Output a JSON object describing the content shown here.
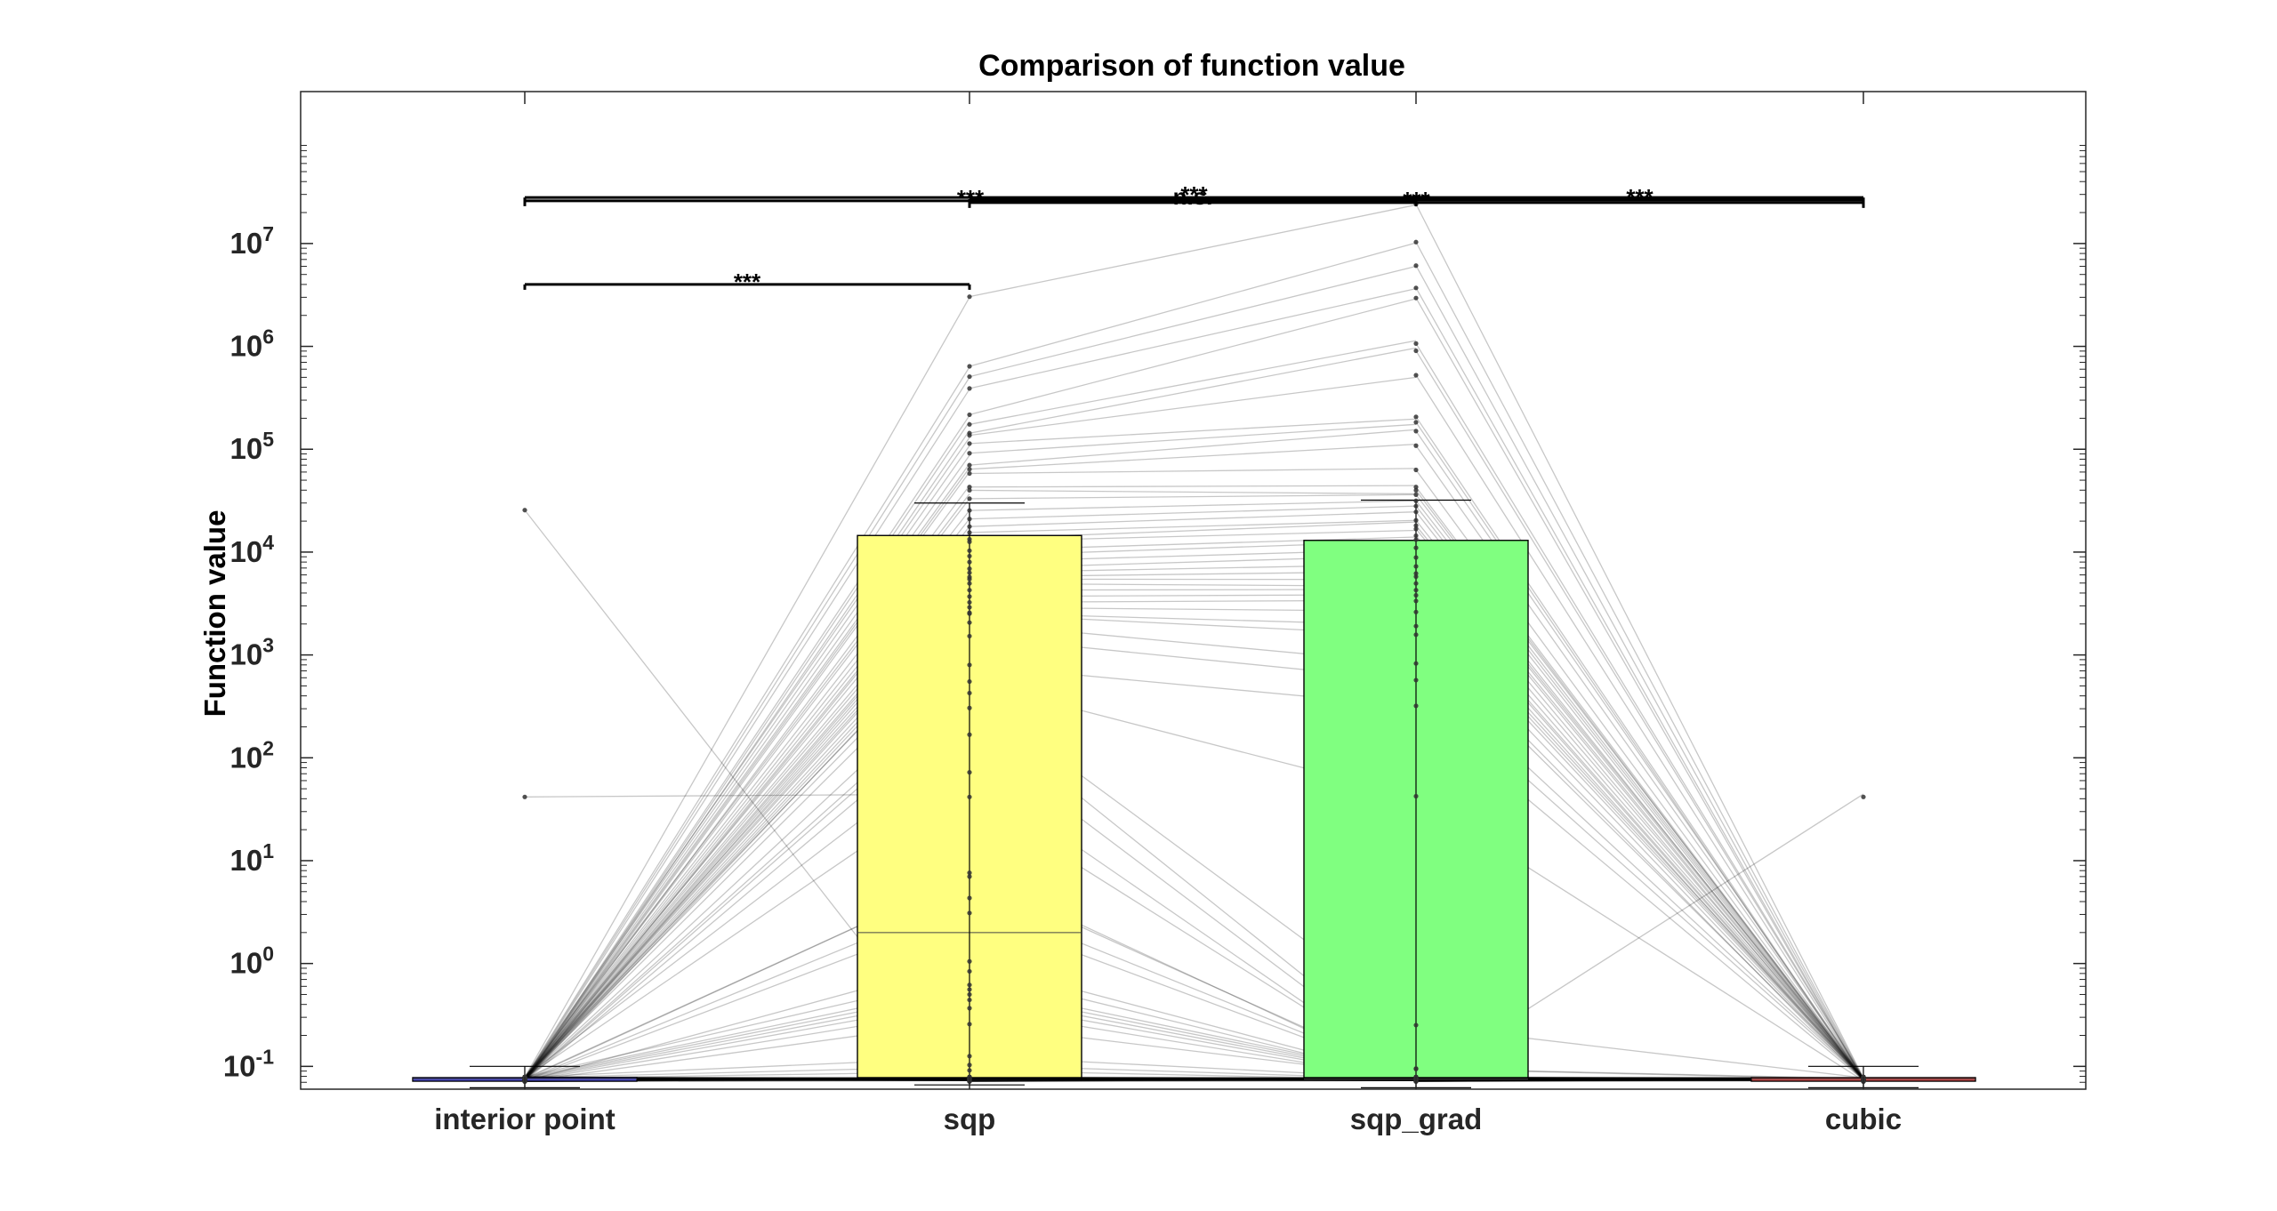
{
  "chart_data": {
    "type": "bar",
    "title": "Comparison of function value",
    "xlabel": "",
    "ylabel": "Function value",
    "yscale": "log",
    "ylim": [
      0.06,
      300000000
    ],
    "yticks": [
      {
        "value": 0.1,
        "base": "10",
        "exp": "-1"
      },
      {
        "value": 1,
        "base": "10",
        "exp": "0"
      },
      {
        "value": 10,
        "base": "10",
        "exp": "1"
      },
      {
        "value": 100,
        "base": "10",
        "exp": "2"
      },
      {
        "value": 1000,
        "base": "10",
        "exp": "3"
      },
      {
        "value": 10000,
        "base": "10",
        "exp": "4"
      },
      {
        "value": 100000,
        "base": "10",
        "exp": "5"
      },
      {
        "value": 1000000,
        "base": "10",
        "exp": "6"
      },
      {
        "value": 10000000,
        "base": "10",
        "exp": "7"
      }
    ],
    "categories": [
      "interior point",
      "sqp",
      "sqp_grad",
      "cubic"
    ],
    "bar_colors": [
      "#4d4dff",
      "#ffff80",
      "#80ff80",
      "#ff4d4d"
    ],
    "values": [
      0.075,
      14500,
      13000,
      0.075
    ],
    "error_upper": [
      0.1,
      30000,
      32000,
      0.1
    ],
    "error_lower": [
      0.062,
      0.066,
      0.062,
      0.062
    ],
    "medians": [
      0.075,
      2.0,
      0.075,
      0.075
    ],
    "points": {
      "interior point": [
        0.075,
        0.075,
        0.075,
        0.075,
        0.075,
        0.075,
        0.075,
        0.075,
        0.075,
        0.075,
        0.075,
        0.075,
        0.075,
        0.075,
        0.075,
        0.075,
        0.075,
        0.075,
        0.075,
        0.075,
        0.075,
        0.075,
        0.075,
        0.075,
        0.075,
        0.075,
        0.075,
        0.075,
        0.075,
        0.075,
        0.075,
        0.075,
        0.075,
        0.075,
        0.075,
        0.075,
        0.075,
        0.075,
        0.075,
        0.075,
        0.075,
        0.075,
        0.075,
        0.075,
        0.075,
        0.075,
        0.075,
        0.075,
        0.075,
        0.075,
        0.075,
        0.075,
        0.075,
        0.075,
        0.075,
        0.075,
        0.075,
        0.075,
        0.075,
        0.075,
        0.075,
        0.075,
        0.075,
        0.075,
        0.075,
        0.075,
        0.075,
        0.075,
        0.075,
        0.075,
        0.075,
        0.075,
        0.075,
        0.075,
        0.075,
        0.075,
        0.075,
        0.075,
        0.075,
        0.075,
        0.075,
        0.075,
        0.075,
        0.075,
        0.075,
        0.075,
        0.075,
        0.075,
        0.075,
        0.075,
        0.075,
        0.075,
        0.075,
        0.075,
        0.075,
        0.075,
        0.075,
        0.075,
        0.075,
        0.075,
        0.075,
        0.075,
        0.075,
        0.075,
        0.075,
        0.075,
        0.075,
        0.075,
        0.075,
        26000,
        43
      ],
      "sqp": [
        2900000,
        620000,
        500000,
        390000,
        220000,
        180000,
        150000,
        130000,
        110000,
        90000,
        70000,
        65000,
        60000,
        45000,
        38000,
        32000,
        25000,
        21000,
        18000,
        16000,
        14000,
        12000,
        10000,
        9000,
        8000,
        7000,
        6500,
        6000,
        5200,
        4800,
        4200,
        3700,
        3300,
        3000,
        2700,
        2400,
        2000,
        1500,
        800,
        560,
        440,
        320,
        160,
        70,
        7.5,
        7,
        4.4,
        3.2,
        1.1,
        0.8,
        0.6,
        0.55,
        0.5,
        0.45,
        0.38,
        0.27,
        0.12,
        0.1,
        0.09,
        0.075,
        0.075,
        0.075,
        0.075,
        0.075,
        0.075,
        0.075,
        0.075,
        0.075,
        0.075,
        0.075,
        0.075,
        0.075,
        0.075,
        0.075,
        0.075,
        0.075,
        0.075,
        0.075,
        0.075,
        0.075,
        0.075,
        0.075,
        0.075,
        0.075,
        0.075,
        0.075,
        0.075,
        0.075,
        0.075,
        0.075,
        0.075,
        0.075,
        0.075,
        0.075,
        0.075,
        0.075,
        0.075,
        0.075,
        0.075,
        0.075,
        0.075,
        0.075,
        0.075,
        0.075,
        0.075,
        0.075,
        0.075,
        0.075,
        0.075,
        0.075,
        43
      ],
      "sqp_grad": [
        23000000,
        10000000,
        6000000,
        3700000,
        3000000,
        1100000,
        950000,
        500000,
        200000,
        180000,
        150000,
        110000,
        65000,
        45000,
        38000,
        35000,
        31000,
        28000,
        25000,
        21000,
        19000,
        16000,
        14000,
        13000,
        11000,
        9000,
        7500,
        6500,
        5500,
        4800,
        4200,
        3800,
        3400,
        2700,
        2000,
        1500,
        800,
        560,
        320,
        43,
        0.26,
        0.1,
        0.09,
        0.075,
        0.075,
        0.075,
        0.075,
        0.075,
        0.075,
        0.075,
        0.075,
        0.075,
        0.075,
        0.075,
        0.075,
        0.075,
        0.075,
        0.075,
        0.075,
        0.075,
        0.075,
        0.075,
        0.075,
        0.075,
        0.075,
        0.075,
        0.075,
        0.075,
        0.075,
        0.075,
        0.075,
        0.075,
        0.075,
        0.075,
        0.075,
        0.075,
        0.075,
        0.075,
        0.075,
        0.075,
        0.075,
        0.075,
        0.075,
        0.075,
        0.075,
        0.075,
        0.075,
        0.075,
        0.075,
        0.075,
        0.075,
        0.075,
        0.075,
        0.075,
        0.075,
        0.075,
        0.075,
        0.075,
        0.075,
        0.075,
        0.075,
        0.075,
        0.075,
        0.075,
        0.075,
        0.075,
        0.075,
        0.075,
        0.075,
        0.075,
        0.075
      ],
      "cubic": [
        0.075,
        0.075,
        0.075,
        0.075,
        0.075,
        0.075,
        0.075,
        0.075,
        0.075,
        0.075,
        0.075,
        0.075,
        0.075,
        0.075,
        0.075,
        0.075,
        0.075,
        0.075,
        0.075,
        0.075,
        0.075,
        0.075,
        0.075,
        0.075,
        0.075,
        0.075,
        0.075,
        0.075,
        0.075,
        0.075,
        0.075,
        0.075,
        0.075,
        0.075,
        0.075,
        0.075,
        0.075,
        0.075,
        0.075,
        0.075,
        0.075,
        0.075,
        0.075,
        0.075,
        0.075,
        0.075,
        0.075,
        0.075,
        0.075,
        0.075,
        0.075,
        0.075,
        0.075,
        0.075,
        0.075,
        0.075,
        0.075,
        0.075,
        0.075,
        0.075,
        0.075,
        0.075,
        0.075,
        0.075,
        0.075,
        0.075,
        0.075,
        0.075,
        0.075,
        0.075,
        0.075,
        0.075,
        0.075,
        0.075,
        0.075,
        0.075,
        0.075,
        0.075,
        0.075,
        0.075,
        0.075,
        0.075,
        0.075,
        0.075,
        0.075,
        0.075,
        0.075,
        0.075,
        0.075,
        0.075,
        0.075,
        0.075,
        0.075,
        0.075,
        0.075,
        0.075,
        0.075,
        0.075,
        0.075,
        0.075,
        0.075,
        0.075,
        0.075,
        0.075,
        0.075,
        0.075,
        0.075,
        0.075,
        0.075,
        0.075,
        43
      ]
    },
    "significance": [
      {
        "from": 0,
        "to": 1,
        "label": "***",
        "level": 4000000
      },
      {
        "from": 0,
        "to": 3,
        "label": "***",
        "level": 28000000
      },
      {
        "from": 1,
        "to": 2,
        "label": "n.s.",
        "level": 27000000
      },
      {
        "from": 2,
        "to": 3,
        "label": "***",
        "level": 26500000
      },
      {
        "from": 1,
        "to": 3,
        "label": "***",
        "level": 25000000
      },
      {
        "from": 0,
        "to": 2,
        "label": "***",
        "level": 26000000
      }
    ],
    "grid": false,
    "legend": "none"
  }
}
